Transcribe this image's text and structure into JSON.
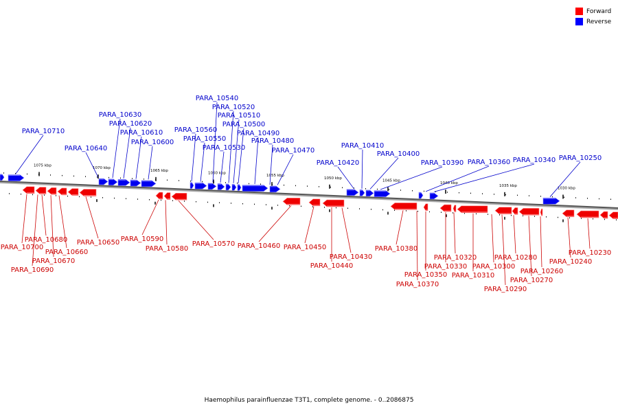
{
  "legend": {
    "forward": "Forward",
    "reverse": "Reverse",
    "forward_color": "#ff0000",
    "reverse_color": "#0000ff"
  },
  "footer": "Haemophilus parainfluenzae T3T1, complete genome. - 0..2086875",
  "scale_labels": [
    "1075 kbp",
    "1070 kbp",
    "1065 kbp",
    "1060 kbp",
    "1055 kbp",
    "1050 kbp",
    "1045 kbp",
    "1040 kbp",
    "1035 kbp",
    "1030 kbp"
  ],
  "reverse_genes": [
    "PARA_10710",
    "PARA_10640",
    "PARA_10630",
    "PARA_10620",
    "PARA_10610",
    "PARA_10600",
    "PARA_10560",
    "PARA_10550",
    "PARA_10540",
    "PARA_10530",
    "PARA_10520",
    "PARA_10510",
    "PARA_10500",
    "PARA_10490",
    "PARA_10480",
    "PARA_10470",
    "PARA_10420",
    "PARA_10410",
    "PARA_10400",
    "PARA_10390",
    "PARA_10360",
    "PARA_10340",
    "PARA_10250"
  ],
  "forward_genes": [
    "PARA_10700",
    "PARA_10690",
    "PARA_10680",
    "PARA_10670",
    "PARA_10660",
    "PARA_10650",
    "PARA_10590",
    "PARA_10580",
    "PARA_10570",
    "PARA_10460",
    "PARA_10450",
    "PARA_10440",
    "PARA_10430",
    "PARA_10380",
    "PARA_10370",
    "PARA_10350",
    "PARA_10330",
    "PARA_10320",
    "PARA_10310",
    "PARA_10300",
    "PARA_10290",
    "PARA_10280",
    "PARA_10270",
    "PARA_10260",
    "PARA_10240",
    "PARA_10230"
  ]
}
